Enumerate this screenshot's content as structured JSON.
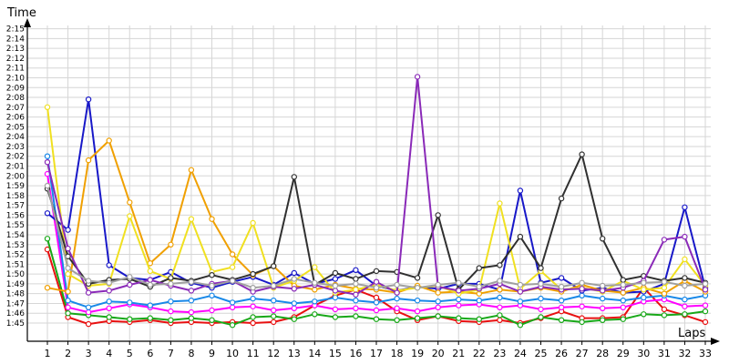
{
  "chart_data": {
    "type": "line",
    "title": "",
    "ylabel": "Time",
    "xlabel": "Laps",
    "x": [
      1,
      2,
      3,
      4,
      5,
      6,
      7,
      8,
      9,
      10,
      11,
      12,
      13,
      14,
      15,
      16,
      17,
      18,
      19,
      20,
      21,
      22,
      23,
      24,
      25,
      26,
      27,
      28,
      29,
      30,
      31,
      32,
      33
    ],
    "y_ticks": [
      "1:45",
      "1:46",
      "1:47",
      "1:48",
      "1:49",
      "1:50",
      "1:51",
      "1:52",
      "1:53",
      "1:54",
      "1:55",
      "1:56",
      "1:57",
      "1:58",
      "1:59",
      "2:00",
      "2:01",
      "2:02",
      "2:03",
      "2:04",
      "2:05",
      "2:06",
      "2:07",
      "2:08",
      "2:09",
      "2:10",
      "2:11",
      "2:12",
      "2:13",
      "2:14",
      "2:15"
    ],
    "ylim_seconds": [
      104,
      136
    ],
    "grid": true,
    "series": [
      {
        "color": "#e81010",
        "values": [
          112.5,
          105.6,
          104.9,
          105.2,
          105.1,
          105.3,
          105.0,
          105.1,
          105.0,
          105.1,
          105.0,
          105.1,
          105.6,
          106.8,
          107.8,
          108.4,
          107.6,
          106.2,
          105.3,
          105.7,
          105.2,
          105.1,
          105.3,
          105.0,
          105.5,
          106.2,
          105.5,
          105.5,
          105.6,
          108.6,
          106.4,
          105.8,
          105.1
        ]
      },
      {
        "color": "#18a818",
        "values": [
          113.6,
          106.0,
          105.8,
          105.6,
          105.4,
          105.5,
          105.3,
          105.5,
          105.3,
          104.8,
          105.6,
          105.7,
          105.4,
          105.9,
          105.6,
          105.7,
          105.4,
          105.3,
          105.5,
          105.7,
          105.5,
          105.4,
          105.8,
          104.8,
          105.6,
          105.3,
          105.1,
          105.3,
          105.4,
          105.9,
          105.8,
          105.9,
          106.2
        ]
      },
      {
        "color": "#ff00ff",
        "values": [
          120.2,
          106.6,
          106.1,
          106.5,
          106.9,
          106.6,
          106.2,
          106.1,
          106.3,
          106.6,
          106.7,
          106.3,
          106.5,
          106.8,
          106.4,
          106.5,
          106.3,
          106.5,
          106.2,
          106.6,
          106.8,
          106.9,
          106.6,
          106.8,
          106.4,
          106.6,
          106.7,
          106.5,
          106.6,
          107.2,
          107.4,
          106.7,
          106.8
        ]
      },
      {
        "color": "#1888e8",
        "values": [
          122.0,
          107.3,
          106.6,
          107.2,
          107.1,
          106.8,
          107.2,
          107.3,
          107.8,
          107.1,
          107.5,
          107.3,
          107.0,
          107.2,
          107.6,
          107.3,
          107.1,
          107.5,
          107.3,
          107.2,
          107.4,
          107.3,
          107.6,
          107.2,
          107.5,
          107.3,
          107.8,
          107.5,
          107.3,
          107.6,
          107.8,
          107.4,
          107.8
        ]
      },
      {
        "color": "#1818c8",
        "values": [
          116.2,
          114.5,
          127.8,
          110.9,
          109.6,
          109.4,
          110.2,
          109.1,
          108.6,
          109.2,
          109.7,
          108.9,
          110.1,
          109.0,
          109.5,
          110.4,
          108.8,
          108.3,
          108.7,
          108.5,
          109.0,
          109.0,
          108.4,
          118.5,
          109.1,
          109.6,
          108.3,
          108.6,
          108.1,
          108.2,
          109.0,
          116.8,
          108.6
        ]
      },
      {
        "color": "#f0a000",
        "values": [
          108.6,
          108.2,
          121.6,
          123.6,
          117.3,
          111.1,
          113.0,
          120.6,
          115.6,
          112.0,
          109.9,
          110.8,
          108.8,
          108.4,
          108.9,
          108.5,
          108.4,
          108.1,
          108.8,
          108.1,
          108.2,
          108.0,
          108.4,
          108.2,
          108.6,
          108.2,
          108.9,
          108.3,
          108.1,
          108.6,
          108.0,
          109.3,
          108.2
        ]
      },
      {
        "color": "#f0e020",
        "values": [
          127.0,
          110.0,
          108.8,
          109.0,
          115.9,
          110.3,
          109.5,
          115.6,
          110.2,
          110.7,
          115.2,
          108.6,
          109.3,
          110.7,
          108.1,
          108.4,
          108.9,
          108.3,
          108.6,
          108.8,
          108.0,
          108.4,
          117.2,
          108.5,
          110.3,
          108.4,
          108.6,
          108.2,
          109.3,
          108.4,
          108.6,
          111.5,
          108.8
        ]
      },
      {
        "color": "#303030",
        "values": [
          118.7,
          111.8,
          109.0,
          109.4,
          109.5,
          108.7,
          109.6,
          109.3,
          109.9,
          109.4,
          110.0,
          110.8,
          119.9,
          108.9,
          110.1,
          109.5,
          110.3,
          110.2,
          109.6,
          116.0,
          108.4,
          110.6,
          110.9,
          113.8,
          110.6,
          117.7,
          122.2,
          113.6,
          109.4,
          109.8,
          109.3,
          109.6,
          109.1
        ]
      },
      {
        "color": "#8a2ab8",
        "values": [
          121.4,
          112.6,
          108.1,
          108.3,
          108.9,
          109.4,
          108.8,
          108.3,
          109.0,
          109.3,
          108.2,
          108.7,
          108.5,
          108.9,
          108.3,
          107.9,
          109.2,
          108.1,
          130.1,
          108.7,
          108.3,
          108.5,
          109.0,
          108.2,
          108.7,
          108.4,
          108.5,
          108.3,
          108.6,
          109.3,
          113.5,
          113.8,
          108.4
        ]
      },
      {
        "color": "#a0a0a0",
        "values": [
          119.0,
          110.6,
          109.3,
          109.1,
          109.7,
          108.9,
          109.0,
          109.2,
          108.8,
          109.3,
          108.6,
          108.8,
          109.5,
          109.1,
          108.8,
          109.0,
          108.6,
          108.9,
          108.6,
          108.9,
          109.1,
          108.7,
          109.3,
          108.9,
          109.0,
          108.7,
          109.1,
          108.8,
          108.9,
          109.1,
          109.2,
          108.8,
          109.0
        ]
      }
    ]
  }
}
